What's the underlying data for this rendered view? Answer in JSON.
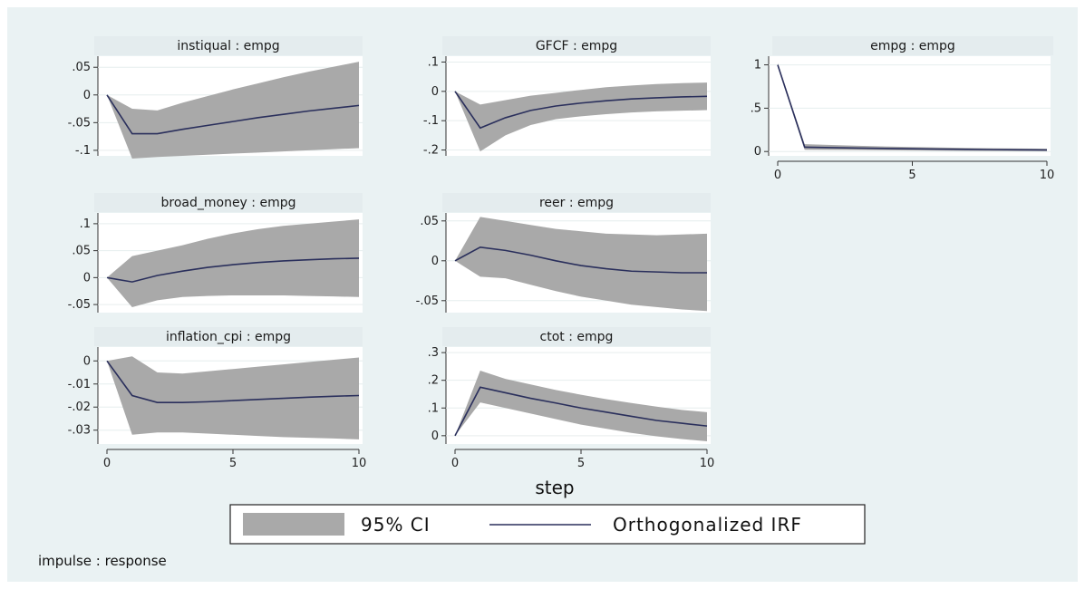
{
  "chart_data": {
    "type": "line",
    "xlabel": "step",
    "note": "impulse : response",
    "legend": {
      "ci_label": "95% CI",
      "line_label": "Orthogonalized IRF",
      "placement": "bottom-center"
    },
    "colors": {
      "ci_fill": "#a9a9a9",
      "line": "#2a2f5c",
      "panel_background": "#eaf2f3",
      "title_strip": "#e4ecee",
      "plot_background": "#ffffff"
    },
    "panels": [
      {
        "title": "instiqual : empg",
        "xlim": [
          0,
          10
        ],
        "ylim": [
          -0.11,
          0.07
        ],
        "yticks": [
          0.05,
          0,
          -0.05,
          -0.1
        ],
        "ytick_labels": [
          ".05",
          "0",
          "-.05",
          "-.1"
        ],
        "xticks": [],
        "steps": [
          0,
          1,
          2,
          3,
          4,
          5,
          6,
          7,
          8,
          9,
          10
        ],
        "irf": [
          0.0,
          -0.07,
          -0.07,
          -0.062,
          -0.055,
          -0.048,
          -0.041,
          -0.035,
          -0.029,
          -0.024,
          -0.019
        ],
        "lower": [
          0.0,
          -0.115,
          -0.112,
          -0.11,
          -0.108,
          -0.106,
          -0.104,
          -0.102,
          -0.1,
          -0.098,
          -0.096
        ],
        "upper": [
          0.0,
          -0.025,
          -0.028,
          -0.014,
          -0.002,
          0.01,
          0.021,
          0.032,
          0.042,
          0.051,
          0.06
        ]
      },
      {
        "title": "GFCF : empg",
        "xlim": [
          0,
          10
        ],
        "ylim": [
          -0.22,
          0.12
        ],
        "yticks": [
          0.1,
          0,
          -0.1,
          -0.2
        ],
        "ytick_labels": [
          ".1",
          "0",
          "-.1",
          "-.2"
        ],
        "xticks": [],
        "steps": [
          0,
          1,
          2,
          3,
          4,
          5,
          6,
          7,
          8,
          9,
          10
        ],
        "irf": [
          0.0,
          -0.125,
          -0.09,
          -0.065,
          -0.05,
          -0.04,
          -0.032,
          -0.026,
          -0.022,
          -0.019,
          -0.017
        ],
        "lower": [
          0.0,
          -0.205,
          -0.15,
          -0.115,
          -0.095,
          -0.085,
          -0.078,
          -0.072,
          -0.068,
          -0.066,
          -0.064
        ],
        "upper": [
          0.0,
          -0.045,
          -0.03,
          -0.015,
          -0.005,
          0.005,
          0.014,
          0.02,
          0.025,
          0.028,
          0.03
        ]
      },
      {
        "title": "empg : empg",
        "xlim": [
          0,
          10
        ],
        "ylim": [
          -0.05,
          1.1
        ],
        "yticks": [
          1,
          0.5,
          0
        ],
        "ytick_labels": [
          "1",
          ".5",
          "0"
        ],
        "xticks": [
          0,
          5,
          10
        ],
        "steps": [
          0,
          1,
          2,
          3,
          4,
          5,
          6,
          7,
          8,
          9,
          10
        ],
        "irf": [
          1.0,
          0.05,
          0.045,
          0.04,
          0.036,
          0.032,
          0.028,
          0.025,
          0.022,
          0.02,
          0.018
        ],
        "lower": [
          0.98,
          0.02,
          0.018,
          0.016,
          0.014,
          0.012,
          0.01,
          0.008,
          0.006,
          0.005,
          0.004
        ],
        "upper": [
          1.02,
          0.085,
          0.075,
          0.066,
          0.058,
          0.052,
          0.047,
          0.042,
          0.038,
          0.035,
          0.032
        ]
      },
      {
        "title": "broad_money : empg",
        "xlim": [
          0,
          10
        ],
        "ylim": [
          -0.065,
          0.12
        ],
        "yticks": [
          0.1,
          0.05,
          0,
          -0.05
        ],
        "ytick_labels": [
          ".1",
          ".05",
          "0",
          "-.05"
        ],
        "xticks": [],
        "steps": [
          0,
          1,
          2,
          3,
          4,
          5,
          6,
          7,
          8,
          9,
          10
        ],
        "irf": [
          0.0,
          -0.008,
          0.004,
          0.012,
          0.019,
          0.024,
          0.028,
          0.031,
          0.033,
          0.035,
          0.036
        ],
        "lower": [
          0.0,
          -0.055,
          -0.042,
          -0.036,
          -0.034,
          -0.033,
          -0.033,
          -0.033,
          -0.034,
          -0.035,
          -0.036
        ],
        "upper": [
          0.0,
          0.04,
          0.05,
          0.06,
          0.072,
          0.082,
          0.09,
          0.096,
          0.1,
          0.104,
          0.108
        ]
      },
      {
        "title": "reer : empg",
        "xlim": [
          0,
          10
        ],
        "ylim": [
          -0.065,
          0.06
        ],
        "yticks": [
          0.05,
          0,
          -0.05
        ],
        "ytick_labels": [
          ".05",
          "0",
          "-.05"
        ],
        "xticks": [],
        "steps": [
          0,
          1,
          2,
          3,
          4,
          5,
          6,
          7,
          8,
          9,
          10
        ],
        "irf": [
          0.0,
          0.017,
          0.013,
          0.007,
          0.0,
          -0.006,
          -0.01,
          -0.013,
          -0.014,
          -0.015,
          -0.015
        ],
        "lower": [
          0.0,
          -0.02,
          -0.022,
          -0.03,
          -0.038,
          -0.045,
          -0.05,
          -0.055,
          -0.058,
          -0.061,
          -0.063
        ],
        "upper": [
          0.0,
          0.055,
          0.05,
          0.045,
          0.04,
          0.037,
          0.034,
          0.033,
          0.032,
          0.033,
          0.034
        ]
      },
      {
        "title": "inflation_cpi : empg",
        "xlim": [
          0,
          10
        ],
        "ylim": [
          -0.036,
          0.006
        ],
        "yticks": [
          0,
          -0.01,
          -0.02,
          -0.03
        ],
        "ytick_labels": [
          "0",
          "-.01",
          "-.02",
          "-.03"
        ],
        "xticks": [
          0,
          5,
          10
        ],
        "steps": [
          0,
          1,
          2,
          3,
          4,
          5,
          6,
          7,
          8,
          9,
          10
        ],
        "irf": [
          0.0,
          -0.015,
          -0.018,
          -0.018,
          -0.0177,
          -0.0172,
          -0.0167,
          -0.0162,
          -0.0157,
          -0.0153,
          -0.015
        ],
        "lower": [
          0.0,
          -0.032,
          -0.031,
          -0.031,
          -0.0315,
          -0.032,
          -0.0325,
          -0.033,
          -0.0333,
          -0.0336,
          -0.034
        ],
        "upper": [
          0.0,
          0.002,
          -0.005,
          -0.0055,
          -0.0045,
          -0.0035,
          -0.0025,
          -0.0015,
          -0.0005,
          0.0005,
          0.0015
        ]
      },
      {
        "title": "ctot : empg",
        "xlim": [
          0,
          10
        ],
        "ylim": [
          -0.03,
          0.32
        ],
        "yticks": [
          0.3,
          0.2,
          0.1,
          0
        ],
        "ytick_labels": [
          ".3",
          ".2",
          ".1",
          "0"
        ],
        "xticks": [
          0,
          5,
          10
        ],
        "steps": [
          0,
          1,
          2,
          3,
          4,
          5,
          6,
          7,
          8,
          9,
          10
        ],
        "irf": [
          0.0,
          0.175,
          0.155,
          0.135,
          0.118,
          0.1,
          0.085,
          0.07,
          0.055,
          0.045,
          0.035
        ],
        "lower": [
          0.0,
          0.12,
          0.1,
          0.08,
          0.06,
          0.04,
          0.025,
          0.01,
          -0.002,
          -0.012,
          -0.02
        ],
        "upper": [
          0.0,
          0.235,
          0.205,
          0.185,
          0.165,
          0.148,
          0.132,
          0.118,
          0.105,
          0.093,
          0.085
        ]
      }
    ]
  }
}
